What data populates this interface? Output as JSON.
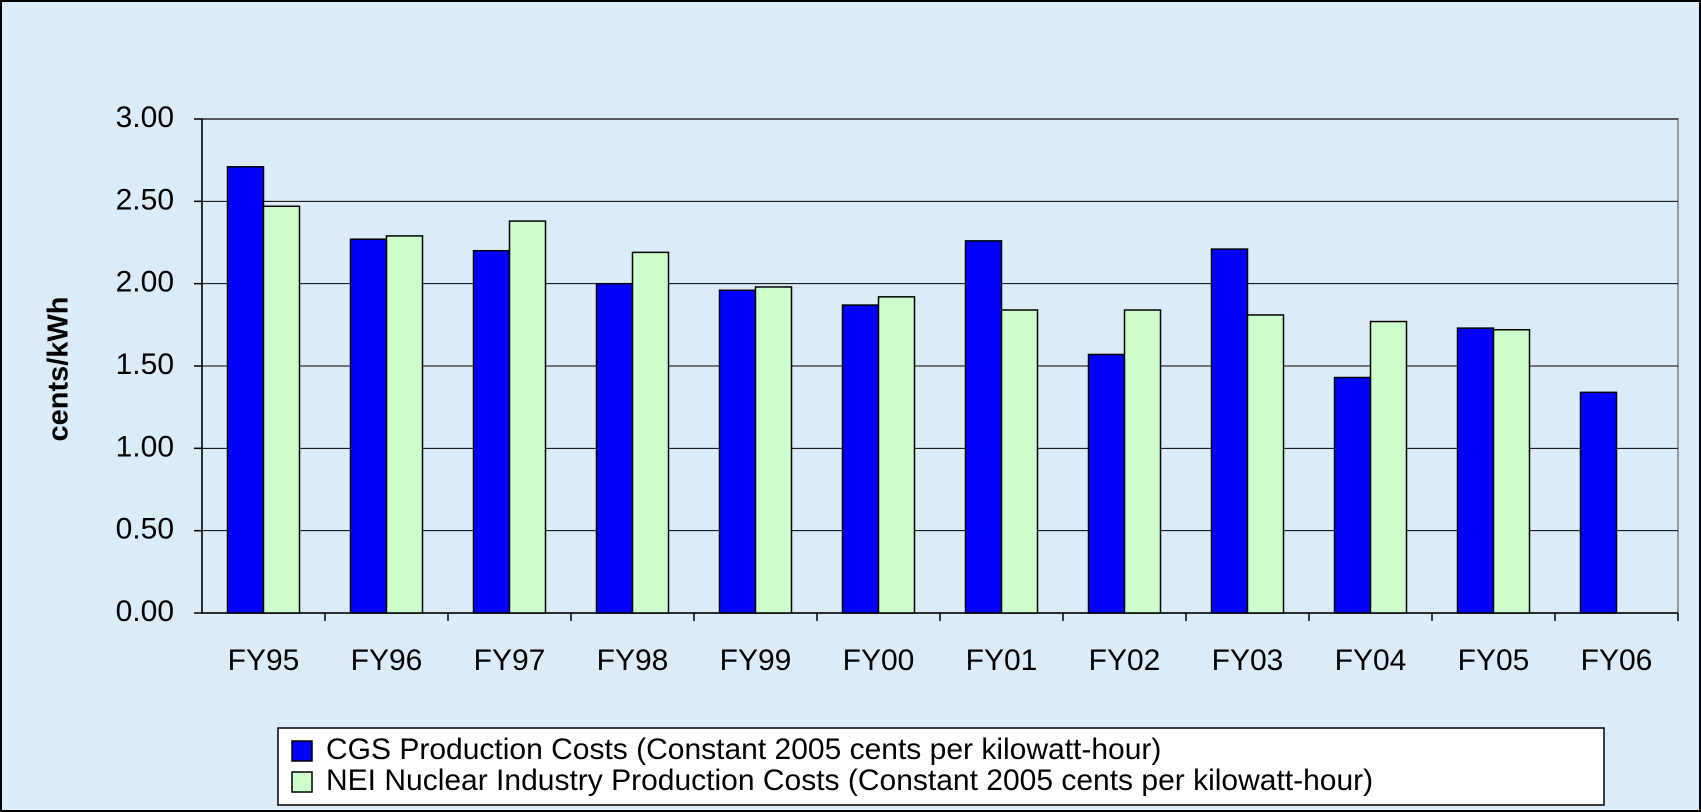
{
  "chart_data": {
    "type": "bar",
    "y_label": "cents/kWh",
    "categories": [
      "FY95",
      "FY96",
      "FY97",
      "FY98",
      "FY99",
      "FY00",
      "FY01",
      "FY02",
      "FY03",
      "FY04",
      "FY05",
      "FY06"
    ],
    "series": [
      {
        "name": "CGS Production Costs (Constant 2005 cents per kilowatt-hour)",
        "color": "#0000ff",
        "values": [
          2.71,
          2.27,
          2.2,
          2.0,
          1.96,
          1.87,
          2.26,
          1.57,
          2.21,
          1.43,
          1.73,
          1.34
        ]
      },
      {
        "name": "NEI Nuclear Industry Production Costs (Constant 2005 cents per kilowatt-hour)",
        "color": "#ccffcc",
        "values": [
          2.47,
          2.29,
          2.38,
          2.19,
          1.98,
          1.92,
          1.84,
          1.84,
          1.81,
          1.77,
          1.72,
          null
        ]
      }
    ],
    "ylim": [
      0,
      3
    ],
    "yticks": [
      {
        "value": 0,
        "label": "0.00"
      },
      {
        "value": 0.5,
        "label": "0.50"
      },
      {
        "value": 1,
        "label": "1.00"
      },
      {
        "value": 1.5,
        "label": "1.50"
      },
      {
        "value": 2,
        "label": "2.00"
      },
      {
        "value": 2.5,
        "label": "2.50"
      },
      {
        "value": 3,
        "label": "3.00"
      }
    ],
    "grid": true,
    "legend": "bottom"
  }
}
